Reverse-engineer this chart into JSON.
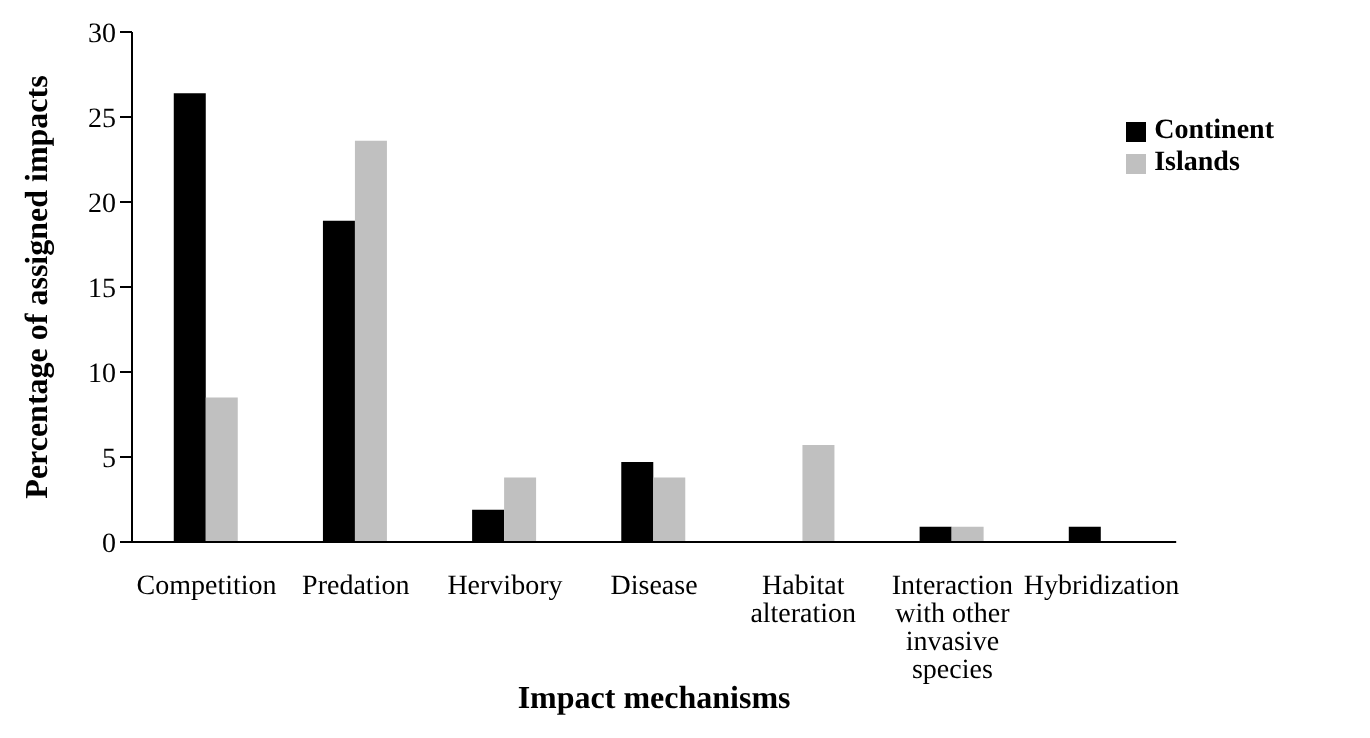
{
  "chart_data": {
    "type": "bar",
    "xlabel": "Impact mechanisms",
    "ylabel": "Percentage of assigned  impacts",
    "categories": [
      "Competition",
      "Predation",
      "Hervibory",
      "Disease",
      "Habitat alteration",
      "Interaction with other invasive species",
      "Hybridization"
    ],
    "series": [
      {
        "name": "Continent",
        "color": "#000000",
        "values": [
          26.4,
          18.9,
          1.9,
          4.7,
          0,
          0.9,
          0.9
        ]
      },
      {
        "name": "Islands",
        "color": "#c0c0c0",
        "values": [
          8.5,
          23.6,
          3.8,
          3.8,
          5.7,
          0.9,
          0
        ]
      }
    ],
    "ylim": [
      0,
      30
    ],
    "yticks": [
      0,
      5,
      10,
      15,
      20,
      25,
      30
    ],
    "grid": false,
    "legend": "top right"
  }
}
